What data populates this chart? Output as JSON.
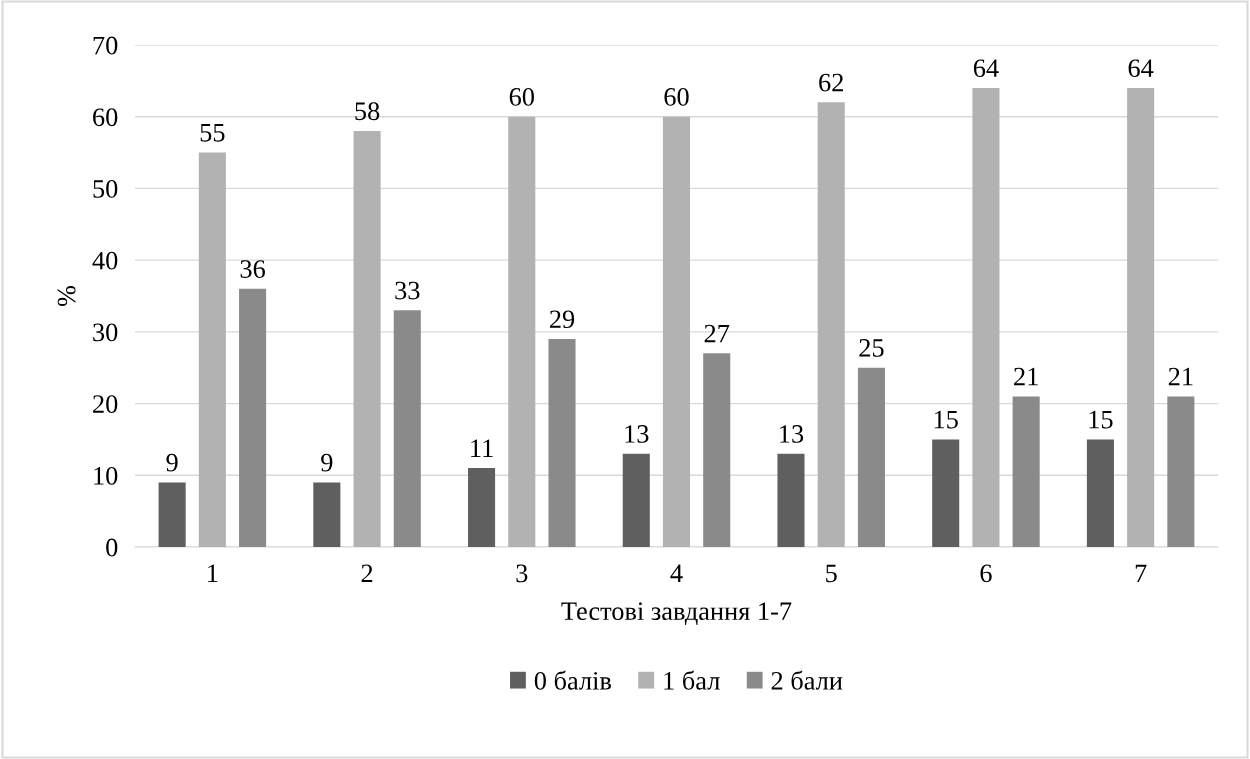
{
  "chart_data": {
    "type": "bar",
    "xlabel": "Тестові завдання 1-7",
    "ylabel": "%",
    "categories": [
      "1",
      "2",
      "3",
      "4",
      "5",
      "6",
      "7"
    ],
    "series": [
      {
        "name": "0 балів",
        "color": "#5f5f5f",
        "values": [
          9,
          9,
          11,
          13,
          13,
          15,
          15
        ]
      },
      {
        "name": "1 бал",
        "color": "#b2b2b2",
        "values": [
          55,
          58,
          60,
          60,
          62,
          64,
          64
        ]
      },
      {
        "name": "2 бали",
        "color": "#8a8a8a",
        "values": [
          36,
          33,
          29,
          27,
          25,
          21,
          21
        ]
      }
    ],
    "ylim": [
      0,
      70
    ],
    "yticks": [
      0,
      10,
      20,
      30,
      40,
      50,
      60,
      70
    ],
    "grid": "y",
    "legend": "bottom",
    "data_labels": true
  }
}
